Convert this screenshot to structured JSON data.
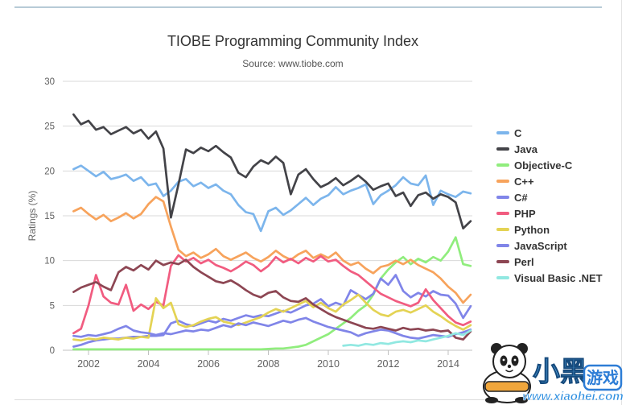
{
  "page": {
    "title": "TIOBE Programming Community Index",
    "subtitle": "Source: www.tiobe.com"
  },
  "chart_data": {
    "type": "line",
    "title": "TIOBE Programming Community Index",
    "subtitle": "Source: www.tiobe.com",
    "xlabel": "",
    "ylabel": "Ratings (%)",
    "ylim": [
      0,
      30
    ],
    "yticks": [
      0,
      5,
      10,
      15,
      20,
      25,
      30
    ],
    "xticks": [
      2002,
      2004,
      2006,
      2008,
      2010,
      2012,
      2014
    ],
    "xlim": [
      2001.2,
      2014.85
    ],
    "grid": true,
    "legend_position": "right",
    "x_start": 2001.5,
    "x_step": 0.25,
    "series": [
      {
        "name": "C",
        "slug": "c",
        "color": "#7cb5ec",
        "values": [
          20.2,
          20.6,
          20.0,
          19.4,
          19.9,
          19.1,
          19.3,
          19.6,
          18.9,
          19.3,
          18.4,
          18.6,
          17.2,
          17.8,
          18.8,
          19.1,
          18.3,
          18.7,
          18.1,
          18.5,
          17.8,
          17.4,
          16.2,
          15.4,
          15.2,
          13.3,
          15.5,
          15.9,
          15.1,
          15.6,
          16.3,
          17.0,
          16.2,
          16.9,
          17.3,
          18.2,
          17.4,
          17.8,
          18.1,
          18.5,
          16.3,
          17.3,
          17.8,
          18.4,
          19.3,
          18.6,
          18.4,
          19.5,
          16.2,
          17.8,
          17.4,
          17.1,
          17.7,
          17.5
        ]
      },
      {
        "name": "Java",
        "slug": "java",
        "color": "#434348",
        "values": [
          26.3,
          25.2,
          25.6,
          24.6,
          24.9,
          24.1,
          24.5,
          24.9,
          24.2,
          24.6,
          23.6,
          24.4,
          22.5,
          14.8,
          18.5,
          22.4,
          22.0,
          22.6,
          22.2,
          22.8,
          22.1,
          21.5,
          19.8,
          19.3,
          20.5,
          21.2,
          20.8,
          21.6,
          20.9,
          17.4,
          19.6,
          20.2,
          19.1,
          18.2,
          18.6,
          19.2,
          18.4,
          18.9,
          19.5,
          18.8,
          17.9,
          18.3,
          18.6,
          17.2,
          17.6,
          16.1,
          17.3,
          17.6,
          16.9,
          17.4,
          17.1,
          16.5,
          13.6,
          14.4
        ]
      },
      {
        "name": "Objective-C",
        "slug": "objective-c",
        "color": "#90ed7d",
        "values": [
          0.1,
          0.1,
          0.1,
          0.1,
          0.1,
          0.1,
          0.1,
          0.1,
          0.1,
          0.1,
          0.1,
          0.1,
          0.1,
          0.1,
          0.1,
          0.1,
          0.1,
          0.1,
          0.1,
          0.1,
          0.1,
          0.1,
          0.1,
          0.1,
          0.1,
          0.1,
          0.15,
          0.2,
          0.2,
          0.3,
          0.4,
          0.6,
          1.0,
          1.4,
          1.8,
          2.4,
          3.0,
          3.6,
          4.4,
          5.0,
          6.2,
          8.0,
          9.0,
          9.8,
          10.4,
          9.6,
          10.2,
          9.8,
          10.4,
          10.0,
          11.0,
          12.6,
          9.6,
          9.4
        ]
      },
      {
        "name": "C++",
        "slug": "cpp",
        "color": "#f7a35c",
        "values": [
          15.5,
          15.9,
          15.2,
          14.6,
          15.1,
          14.4,
          14.8,
          15.3,
          14.7,
          15.2,
          16.3,
          17.1,
          16.6,
          13.8,
          11.2,
          10.5,
          10.9,
          10.3,
          10.7,
          11.3,
          10.5,
          10.1,
          10.5,
          10.9,
          10.3,
          9.9,
          10.4,
          11.1,
          10.5,
          10.1,
          10.7,
          11.1,
          10.3,
          10.7,
          10.3,
          10.9,
          10.0,
          9.5,
          9.8,
          9.1,
          8.6,
          9.3,
          9.5,
          10.0,
          9.6,
          10.1,
          9.5,
          9.1,
          8.7,
          8.0,
          7.1,
          6.4,
          5.3,
          6.2
        ]
      },
      {
        "name": "C#",
        "slug": "csharp",
        "color": "#8085e9",
        "values": [
          0.4,
          0.6,
          0.9,
          1.1,
          1.2,
          1.3,
          1.3,
          1.4,
          1.5,
          1.5,
          1.6,
          1.6,
          1.7,
          3.0,
          3.3,
          2.9,
          2.7,
          3.0,
          3.3,
          3.1,
          3.5,
          3.3,
          3.6,
          3.9,
          3.7,
          3.9,
          3.8,
          4.1,
          4.4,
          4.2,
          4.6,
          5.0,
          5.2,
          5.7,
          4.9,
          5.3,
          5.0,
          6.7,
          6.2,
          5.7,
          6.3,
          8.0,
          7.3,
          8.4,
          6.6,
          5.9,
          6.4,
          6.0,
          6.6,
          6.2,
          6.1,
          5.2,
          3.6,
          4.9
        ]
      },
      {
        "name": "PHP",
        "slug": "php",
        "color": "#f15c80",
        "values": [
          1.9,
          2.4,
          5.0,
          8.4,
          6.0,
          5.3,
          5.1,
          7.3,
          4.4,
          5.1,
          4.6,
          5.4,
          5.0,
          9.4,
          10.6,
          9.9,
          10.3,
          9.7,
          10.1,
          9.5,
          9.2,
          8.8,
          9.3,
          9.9,
          9.5,
          8.8,
          9.4,
          10.4,
          9.8,
          10.2,
          9.7,
          10.3,
          9.9,
          10.5,
          9.9,
          10.1,
          9.4,
          8.8,
          8.4,
          7.7,
          7.0,
          6.3,
          5.9,
          5.5,
          5.2,
          4.9,
          5.3,
          6.8,
          5.6,
          4.7,
          3.8,
          3.1,
          2.8,
          3.2
        ]
      },
      {
        "name": "Python",
        "slug": "python",
        "color": "#e4d354",
        "values": [
          1.2,
          1.1,
          1.3,
          1.2,
          1.4,
          1.3,
          1.2,
          1.4,
          1.3,
          1.5,
          1.4,
          5.8,
          4.7,
          5.3,
          2.9,
          2.6,
          2.8,
          3.2,
          3.5,
          3.7,
          3.2,
          3.0,
          2.8,
          3.1,
          3.4,
          3.7,
          4.2,
          4.6,
          4.3,
          4.7,
          5.1,
          5.5,
          4.8,
          5.3,
          4.7,
          4.3,
          5.1,
          5.6,
          6.2,
          5.3,
          4.5,
          4.0,
          3.8,
          4.3,
          4.5,
          4.2,
          4.6,
          5.0,
          4.3,
          3.8,
          3.2,
          2.7,
          2.3,
          2.8
        ]
      },
      {
        "name": "JavaScript",
        "slug": "javascript",
        "color": "#8085e8",
        "values": [
          1.6,
          1.5,
          1.7,
          1.6,
          1.8,
          2.0,
          2.4,
          2.7,
          2.2,
          2.0,
          1.9,
          1.7,
          1.9,
          1.8,
          2.0,
          2.2,
          2.1,
          2.3,
          2.2,
          2.5,
          2.8,
          2.6,
          3.0,
          2.8,
          3.1,
          2.9,
          2.7,
          3.0,
          3.3,
          3.1,
          3.4,
          3.6,
          3.2,
          2.9,
          2.6,
          2.4,
          2.2,
          2.0,
          1.6,
          1.9,
          2.1,
          2.3,
          2.2,
          1.9,
          1.6,
          1.4,
          1.3,
          1.5,
          1.7,
          1.6,
          1.5,
          1.8,
          2.0,
          2.3
        ]
      },
      {
        "name": "Perl",
        "slug": "perl",
        "color": "#8d4653",
        "values": [
          6.5,
          7.0,
          7.3,
          7.6,
          7.1,
          6.7,
          8.7,
          9.3,
          8.9,
          9.5,
          9.0,
          10.0,
          9.5,
          9.8,
          9.6,
          10.1,
          9.3,
          8.7,
          8.2,
          7.7,
          7.5,
          7.8,
          7.3,
          6.7,
          6.2,
          5.9,
          6.4,
          6.6,
          5.9,
          5.5,
          5.4,
          5.8,
          5.1,
          4.6,
          4.1,
          3.7,
          3.4,
          3.1,
          2.8,
          2.5,
          2.4,
          2.6,
          2.4,
          2.2,
          2.5,
          2.3,
          2.4,
          2.2,
          2.3,
          2.1,
          2.2,
          1.4,
          1.2,
          2.1
        ]
      },
      {
        "name": "Visual Basic .NET",
        "slug": "vb-net",
        "color": "#91e8e1",
        "values": [
          null,
          null,
          null,
          null,
          null,
          null,
          null,
          null,
          null,
          null,
          null,
          null,
          null,
          null,
          null,
          null,
          null,
          null,
          null,
          null,
          null,
          null,
          null,
          null,
          null,
          null,
          null,
          null,
          null,
          null,
          null,
          null,
          null,
          null,
          null,
          null,
          0.5,
          0.6,
          0.5,
          0.7,
          0.6,
          0.8,
          0.7,
          0.9,
          1.0,
          0.9,
          1.1,
          1.0,
          1.2,
          1.4,
          1.6,
          1.9,
          1.7,
          2.2
        ]
      }
    ]
  },
  "watermark": {
    "brand": "小黑游戏",
    "brand_left": "小黑",
    "brand_right": "游戏",
    "url": "www.xiaohei.com"
  }
}
